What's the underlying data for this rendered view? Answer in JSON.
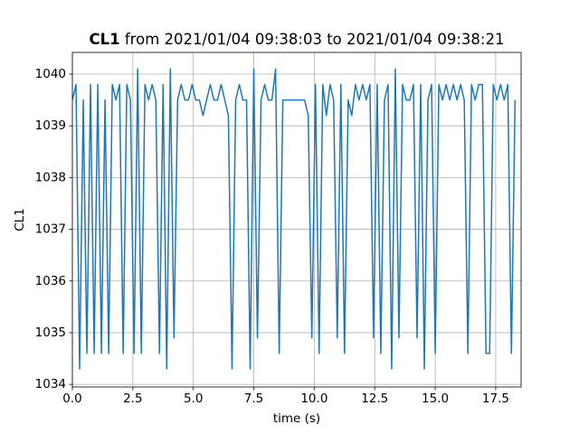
{
  "chart_data": {
    "type": "line",
    "title_name": "CL1",
    "title": "from 2021/01/04 09:38:03 to 2021/01/04 09:38:21",
    "xlabel": "time (s)",
    "ylabel": "CL1",
    "xlim": [
      0,
      18.55
    ],
    "ylim": [
      1033.95,
      1040.42
    ],
    "xticks": [
      {
        "value": 0,
        "label": "0.0"
      },
      {
        "value": 2.5,
        "label": "2.5"
      },
      {
        "value": 5,
        "label": "5.0"
      },
      {
        "value": 7.5,
        "label": "7.5"
      },
      {
        "value": 10,
        "label": "10.0"
      },
      {
        "value": 12.5,
        "label": "12.5"
      },
      {
        "value": 15,
        "label": "15.0"
      },
      {
        "value": 17.5,
        "label": "17.5"
      }
    ],
    "yticks": [
      1034,
      1035,
      1036,
      1037,
      1038,
      1039,
      1040
    ],
    "grid": true,
    "x": [
      0,
      0.15,
      0.3,
      0.45,
      0.6,
      0.75,
      0.9,
      1.05,
      1.2,
      1.35,
      1.5,
      1.65,
      1.8,
      1.95,
      2.1,
      2.25,
      2.4,
      2.55,
      2.7,
      2.85,
      3.0,
      3.15,
      3.3,
      3.45,
      3.6,
      3.75,
      3.9,
      4.05,
      4.2,
      4.35,
      4.5,
      4.65,
      4.8,
      4.95,
      5.1,
      5.25,
      5.4,
      5.55,
      5.7,
      5.85,
      6.0,
      6.15,
      6.3,
      6.45,
      6.6,
      6.75,
      6.9,
      7.05,
      7.2,
      7.35,
      7.5,
      7.65,
      7.8,
      7.95,
      8.1,
      8.25,
      8.4,
      8.55,
      8.7,
      8.85,
      9.0,
      9.15,
      9.3,
      9.45,
      9.6,
      9.75,
      9.9,
      10.05,
      10.2,
      10.35,
      10.5,
      10.65,
      10.8,
      10.95,
      11.1,
      11.25,
      11.4,
      11.55,
      11.7,
      11.85,
      12.0,
      12.15,
      12.3,
      12.45,
      12.6,
      12.75,
      12.9,
      13.05,
      13.2,
      13.35,
      13.5,
      13.65,
      13.8,
      13.95,
      14.1,
      14.25,
      14.4,
      14.55,
      14.7,
      14.85,
      15.0,
      15.15,
      15.3,
      15.45,
      15.6,
      15.75,
      15.9,
      16.05,
      16.2,
      16.35,
      16.5,
      16.65,
      16.8,
      16.95,
      17.1,
      17.25,
      17.4,
      17.55,
      17.7,
      17.85,
      18.0,
      18.15,
      18.3
    ],
    "series": [
      {
        "color": "#1f77b4",
        "values": [
          1039.5,
          1039.8,
          1034.3,
          1039.5,
          1034.6,
          1039.8,
          1034.6,
          1039.8,
          1034.6,
          1039.5,
          1034.6,
          1039.8,
          1039.5,
          1039.8,
          1034.6,
          1039.8,
          1039.5,
          1034.6,
          1040.1,
          1034.6,
          1039.8,
          1039.5,
          1039.8,
          1039.5,
          1034.6,
          1039.8,
          1034.3,
          1040.1,
          1034.9,
          1039.5,
          1039.8,
          1039.5,
          1039.5,
          1039.8,
          1039.5,
          1039.5,
          1039.2,
          1039.5,
          1039.8,
          1039.5,
          1039.5,
          1039.8,
          1039.5,
          1039.2,
          1034.3,
          1039.5,
          1039.8,
          1039.5,
          1039.5,
          1034.3,
          1040.1,
          1034.9,
          1039.5,
          1039.8,
          1039.5,
          1039.5,
          1040.1,
          1034.6,
          1039.5,
          1039.5,
          1039.5,
          1039.5,
          1039.5,
          1039.5,
          1039.5,
          1039.2,
          1034.9,
          1039.8,
          1034.6,
          1039.8,
          1039.2,
          1039.8,
          1039.5,
          1034.9,
          1039.8,
          1034.6,
          1039.5,
          1039.2,
          1039.8,
          1039.5,
          1039.8,
          1039.5,
          1039.8,
          1034.9,
          1039.8,
          1034.6,
          1039.5,
          1039.8,
          1034.3,
          1040.1,
          1034.9,
          1039.8,
          1039.5,
          1039.5,
          1039.8,
          1034.9,
          1039.8,
          1034.3,
          1039.5,
          1039.8,
          1034.6,
          1039.8,
          1039.5,
          1039.8,
          1039.5,
          1039.8,
          1039.5,
          1039.8,
          1039.5,
          1034.6,
          1039.8,
          1039.5,
          1039.8,
          1039.8,
          1034.6,
          1034.6,
          1039.8,
          1039.5,
          1039.8,
          1039.5,
          1039.8,
          1034.6,
          1039.5
        ]
      }
    ]
  }
}
